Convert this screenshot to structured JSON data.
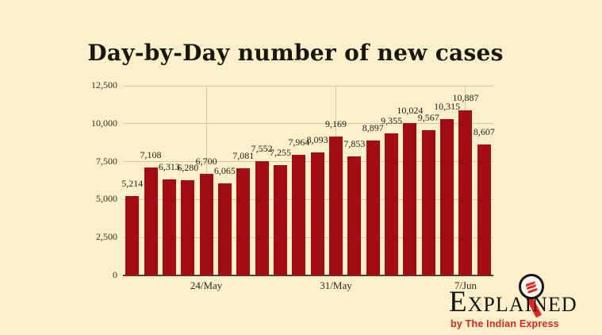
{
  "title": "Day-by-Day number of new cases",
  "colors": {
    "background": "#fdf0ca",
    "bar": "#a30d12",
    "grid": "#cfc7ae",
    "baseline": "#45433a",
    "text": "#23211b",
    "logo_red": "#e3251f",
    "logo_black": "#141311"
  },
  "chart_data": {
    "type": "bar",
    "title": "Day-by-Day number of new cases",
    "values": [
      5214,
      7108,
      6313,
      6280,
      6700,
      6065,
      7081,
      7552,
      7255,
      7964,
      8093,
      9169,
      7853,
      8897,
      9355,
      10024,
      9567,
      10315,
      10887,
      8607
    ],
    "value_labels": [
      "5,214",
      "7,108",
      "6,313",
      "6,280",
      "6,700",
      "6,065",
      "7,081",
      "7,552",
      "7,255",
      "7,964",
      "8,093",
      "9,169",
      "7,853",
      "8,897",
      "9,355",
      "10,024",
      "9,567",
      "10,315",
      "10,887",
      "8,607"
    ],
    "x_ticks": [
      {
        "label": "24/May",
        "index": 4
      },
      {
        "label": "31/May",
        "index": 11
      },
      {
        "label": "7/Jun",
        "index": 18
      }
    ],
    "y_ticks": [
      {
        "label": "0",
        "value": 0
      },
      {
        "label": "2,500",
        "value": 2500
      },
      {
        "label": "5,000",
        "value": 5000
      },
      {
        "label": "7,500",
        "value": 7500
      },
      {
        "label": "10,000",
        "value": 10000
      },
      {
        "label": "12,500",
        "value": 12500
      }
    ],
    "ylim": [
      0,
      12500
    ],
    "xlabel": "",
    "ylabel": "",
    "grid": true,
    "legend": false
  },
  "logo": {
    "wordmark": "Explained",
    "tagline": "by The Indian Express",
    "icon": "magnifier-with-indian-express-mark"
  }
}
